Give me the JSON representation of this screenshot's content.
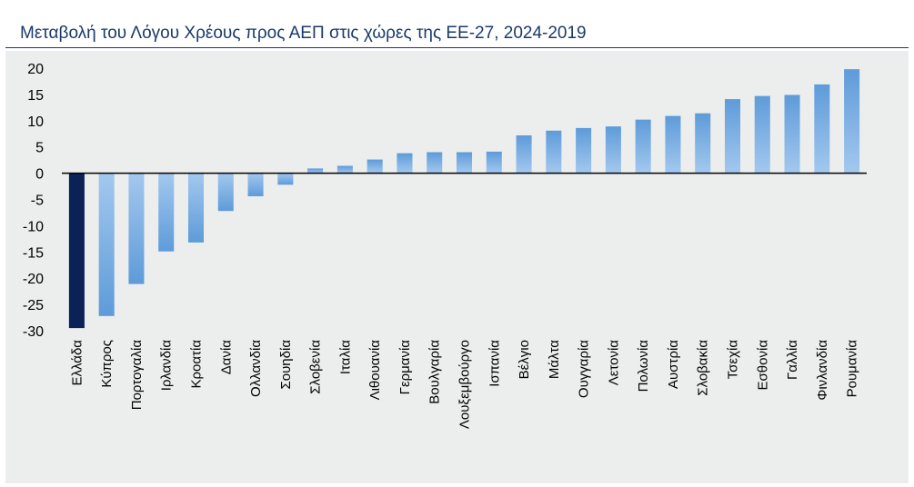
{
  "chart_data": {
    "type": "bar",
    "title": "Μεταβολή του Λόγου Χρέους προς ΑΕΠ στις χώρες της ΕΕ-27, 2024-2019",
    "xlabel": "",
    "ylabel": "",
    "ylim": [
      -30,
      20
    ],
    "yticks": [
      "20",
      "15",
      "10",
      "5",
      "0",
      "-5",
      "-10",
      "-15",
      "-20",
      "-25",
      "-30"
    ],
    "grid": false,
    "legend": "none",
    "categories": [
      "Ελλάδα",
      "Κύπρος",
      "Πορτογαλία",
      "Ιρλανδία",
      "Κροατία",
      "Δανία",
      "Ολλανδία",
      "Σουηδία",
      "Σλοβενία",
      "Ιταλία",
      "Λιθουανία",
      "Γερμανία",
      "Βουλγαρία",
      "Λουξεμβούργο",
      "Ισπανία",
      "Βέλγιο",
      "Μάλτα",
      "Ουγγαρία",
      "Λετονία",
      "Πολωνία",
      "Αυστρία",
      "Σλοβακία",
      "Τσεχία",
      "Εσθονία",
      "Γαλλία",
      "Φινλανδία",
      "Ρουμανία"
    ],
    "values": [
      -29.5,
      -27.2,
      -21.1,
      -14.9,
      -13.2,
      -7.2,
      -4.4,
      -2.2,
      0.9,
      1.4,
      2.6,
      3.8,
      4.0,
      4.0,
      4.1,
      7.2,
      8.1,
      8.6,
      8.9,
      10.2,
      10.9,
      11.4,
      14.1,
      14.7,
      14.9,
      16.9,
      19.8
    ],
    "colors": {
      "highlight": "#0b2257",
      "bar_top": "#5e9bd9",
      "bar_bottom": "#a3c8ee",
      "title": "#1a3a6b",
      "rule": "#1f3b6e",
      "background": "#eceeed"
    }
  }
}
